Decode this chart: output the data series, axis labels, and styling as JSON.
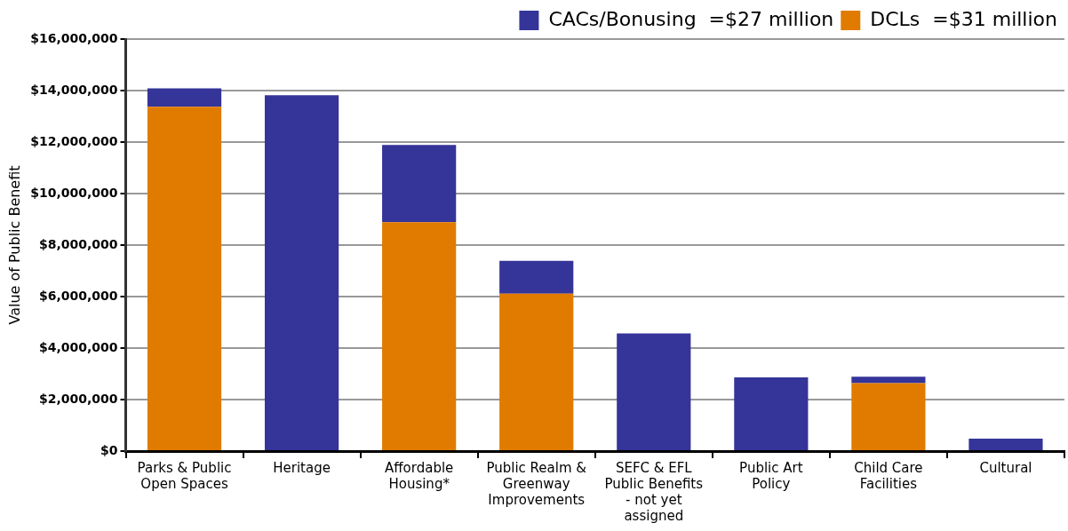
{
  "chart_data": {
    "type": "bar",
    "stacked": true,
    "ylabel": "Value of Public Benefit",
    "categories": [
      "Parks & Public Open Spaces",
      "Heritage",
      "Affordable Housing*",
      "Public Realm & Greenway Improvements",
      "SEFC & EFL Public Benefits - not yet assigned",
      "Public Art Policy",
      "Child Care Facilities",
      "Cultural"
    ],
    "series": [
      {
        "name": "DCLs  =$31 million",
        "color": "#e07b00",
        "values": [
          13370000,
          null,
          8890000,
          6110000,
          null,
          null,
          2640000,
          null
        ]
      },
      {
        "name": "CACs/Bonusing  =$27 million",
        "color": "#343499",
        "values": [
          720000,
          13820000,
          3000000,
          1280000,
          4570000,
          2860000,
          250000,
          480000
        ]
      }
    ],
    "ylim": [
      0,
      16000000
    ],
    "yticks": [
      {
        "value": 0,
        "label": "$0"
      },
      {
        "value": 2000000,
        "label": "$2,000,000"
      },
      {
        "value": 4000000,
        "label": "$4,000,000"
      },
      {
        "value": 6000000,
        "label": "$6,000,000"
      },
      {
        "value": 8000000,
        "label": "$8,000,000"
      },
      {
        "value": 10000000,
        "label": "$10,000,000"
      },
      {
        "value": 12000000,
        "label": "$12,000,000"
      },
      {
        "value": 14000000,
        "label": "$14,000,000"
      },
      {
        "value": 16000000,
        "label": "$16,000,000"
      }
    ],
    "grid": "y",
    "legend": "top right"
  }
}
